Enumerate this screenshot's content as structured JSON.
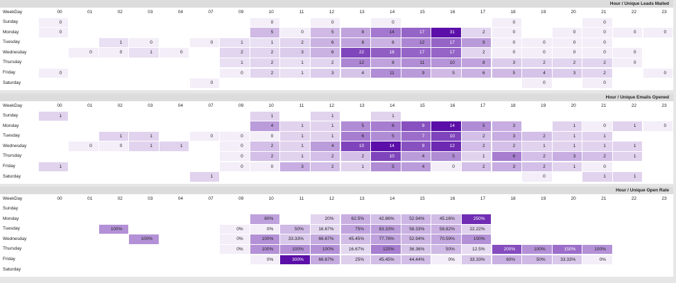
{
  "sections": [
    {
      "title": "Hour / Unique Leads Mailed",
      "header_label": "WeekDay",
      "hours": [
        "00",
        "01",
        "02",
        "03",
        "04",
        "07",
        "09",
        "10",
        "11",
        "12",
        "13",
        "14",
        "15",
        "16",
        "17",
        "18",
        "19",
        "20",
        "21",
        "22",
        "23"
      ],
      "rows": [
        {
          "day": "Sunday",
          "cells": [
            0,
            null,
            null,
            null,
            null,
            null,
            null,
            0,
            null,
            0,
            null,
            0,
            null,
            null,
            null,
            0,
            null,
            null,
            0,
            null,
            null
          ]
        },
        {
          "day": "Monday",
          "cells": [
            0,
            null,
            null,
            null,
            null,
            null,
            null,
            5,
            0,
            5,
            8,
            14,
            17,
            31,
            2,
            0,
            null,
            0,
            0,
            0,
            0
          ]
        },
        {
          "day": "Tuesday",
          "cells": [
            null,
            null,
            1,
            0,
            null,
            0,
            1,
            1,
            2,
            6,
            8,
            6,
            12,
            17,
            9,
            0,
            0,
            0,
            0,
            null,
            null
          ]
        },
        {
          "day": "Wednesday",
          "cells": [
            null,
            0,
            0,
            1,
            0,
            null,
            2,
            2,
            3,
            6,
            22,
            18,
            17,
            17,
            2,
            0,
            0,
            0,
            0,
            0,
            null
          ]
        },
        {
          "day": "Thursday",
          "cells": [
            null,
            null,
            null,
            null,
            null,
            null,
            1,
            2,
            1,
            2,
            12,
            8,
            11,
            10,
            8,
            3,
            2,
            2,
            2,
            0,
            null
          ]
        },
        {
          "day": "Friday",
          "cells": [
            0,
            null,
            null,
            null,
            null,
            null,
            0,
            2,
            1,
            3,
            4,
            11,
            9,
            5,
            6,
            5,
            4,
            3,
            2,
            null,
            0
          ]
        },
        {
          "day": "Saturday",
          "cells": [
            null,
            null,
            null,
            null,
            null,
            0,
            null,
            null,
            null,
            null,
            null,
            null,
            null,
            null,
            null,
            null,
            0,
            null,
            0,
            null,
            null
          ]
        }
      ]
    },
    {
      "title": "Hour / Unique Emails Opened",
      "header_label": "WeekDay",
      "hours": [
        "00",
        "01",
        "02",
        "03",
        "04",
        "07",
        "09",
        "10",
        "11",
        "12",
        "13",
        "14",
        "15",
        "16",
        "17",
        "18",
        "19",
        "20",
        "21",
        "22",
        "23"
      ],
      "rows": [
        {
          "day": "Sunday",
          "cells": [
            1,
            null,
            null,
            null,
            null,
            null,
            null,
            1,
            null,
            1,
            null,
            1,
            null,
            null,
            null,
            null,
            null,
            null,
            null,
            null,
            null
          ]
        },
        {
          "day": "Monday",
          "cells": [
            null,
            null,
            null,
            null,
            null,
            null,
            null,
            4,
            1,
            1,
            5,
            6,
            9,
            14,
            5,
            3,
            null,
            1,
            0,
            1,
            0
          ]
        },
        {
          "day": "Tuesday",
          "cells": [
            null,
            null,
            1,
            1,
            null,
            0,
            0,
            0,
            1,
            1,
            6,
            5,
            7,
            10,
            2,
            3,
            2,
            1,
            1,
            null,
            null
          ]
        },
        {
          "day": "Wednesday",
          "cells": [
            null,
            0,
            0,
            1,
            1,
            null,
            0,
            2,
            1,
            4,
            10,
            14,
            9,
            12,
            2,
            2,
            1,
            1,
            1,
            1,
            null
          ]
        },
        {
          "day": "Thursday",
          "cells": [
            null,
            null,
            null,
            null,
            null,
            null,
            0,
            2,
            1,
            2,
            2,
            10,
            4,
            5,
            1,
            6,
            2,
            3,
            2,
            1,
            null
          ]
        },
        {
          "day": "Friday",
          "cells": [
            1,
            null,
            null,
            null,
            null,
            null,
            0,
            0,
            3,
            2,
            1,
            5,
            4,
            0,
            2,
            3,
            2,
            1,
            0,
            null,
            null
          ]
        },
        {
          "day": "Saturday",
          "cells": [
            null,
            null,
            null,
            null,
            null,
            1,
            null,
            null,
            null,
            null,
            null,
            null,
            null,
            null,
            null,
            null,
            0,
            null,
            1,
            1,
            null
          ]
        }
      ]
    },
    {
      "title": "Hour / Unique Open Rate",
      "header_label": "WeekDay",
      "hours": [
        "00",
        "01",
        "02",
        "03",
        "04",
        "07",
        "09",
        "10",
        "11",
        "12",
        "13",
        "14",
        "15",
        "16",
        "17",
        "18",
        "19",
        "20",
        "21",
        "22",
        "23"
      ],
      "rows": [
        {
          "day": "Sunday",
          "cells": [
            null,
            null,
            null,
            null,
            null,
            null,
            null,
            null,
            null,
            null,
            null,
            null,
            null,
            null,
            null,
            null,
            null,
            null,
            null,
            null,
            null
          ]
        },
        {
          "day": "Monday",
          "cells": [
            null,
            null,
            null,
            null,
            null,
            null,
            null,
            "80%",
            null,
            "20%",
            "62.5%",
            "42.86%",
            "52.94%",
            "45.16%",
            "250%",
            null,
            null,
            null,
            null,
            null,
            null
          ]
        },
        {
          "day": "Tuesday",
          "cells": [
            null,
            null,
            "100%",
            null,
            null,
            null,
            "0%",
            "0%",
            "50%",
            "16.67%",
            "75%",
            "83.33%",
            "58.33%",
            "58.82%",
            "22.22%",
            null,
            null,
            null,
            null,
            null,
            null
          ]
        },
        {
          "day": "Wednesday",
          "cells": [
            null,
            null,
            null,
            "100%",
            null,
            null,
            "0%",
            "100%",
            "33.33%",
            "66.67%",
            "45.45%",
            "77.78%",
            "52.94%",
            "70.59%",
            "100%",
            null,
            null,
            null,
            null,
            null,
            null
          ]
        },
        {
          "day": "Thursday",
          "cells": [
            null,
            null,
            null,
            null,
            null,
            null,
            "0%",
            "100%",
            "100%",
            "100%",
            "16.67%",
            "125%",
            "36.36%",
            "50%",
            "12.5%",
            "200%",
            "100%",
            "150%",
            "100%",
            null,
            null
          ]
        },
        {
          "day": "Friday",
          "cells": [
            null,
            null,
            null,
            null,
            null,
            null,
            null,
            "0%",
            "300%",
            "66.67%",
            "25%",
            "45.45%",
            "44.44%",
            "0%",
            "33.33%",
            "60%",
            "50%",
            "33.33%",
            "0%",
            null,
            null
          ]
        },
        {
          "day": "Saturday",
          "cells": [
            null,
            null,
            null,
            null,
            null,
            null,
            null,
            null,
            null,
            null,
            null,
            null,
            null,
            null,
            null,
            null,
            null,
            null,
            null,
            null,
            null
          ]
        }
      ]
    }
  ]
}
